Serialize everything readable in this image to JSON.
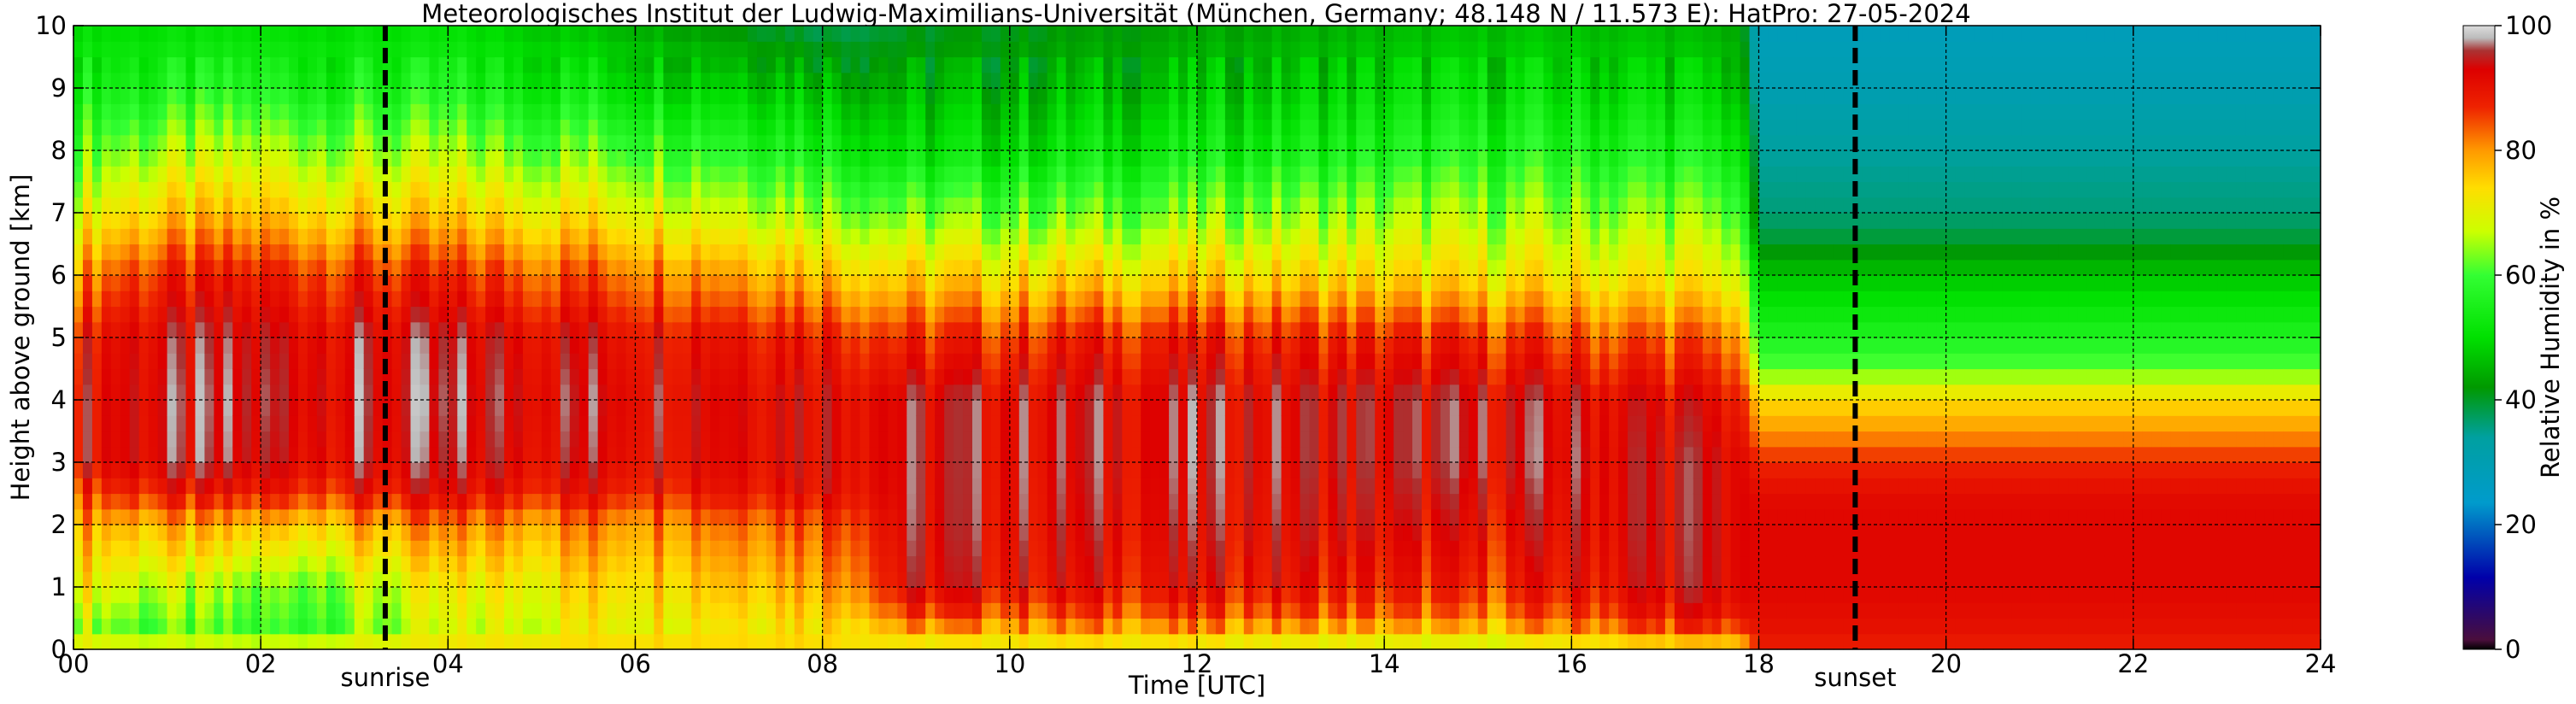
{
  "chart_data": {
    "type": "heatmap",
    "title": "Meteorologisches Institut der Ludwig-Maximilians-Universität (München, Germany; 48.148 N / 11.573 E):    HatPro: 27-05-2024",
    "xlabel": "Time [UTC]",
    "ylabel": "Height above ground [km]",
    "colorbar_label": "Relative Humidity in %",
    "xlim": [
      0,
      24
    ],
    "ylim": [
      0,
      10
    ],
    "x_ticks": [
      {
        "value": 0,
        "label": "00"
      },
      {
        "value": 2,
        "label": "02"
      },
      {
        "value": 4,
        "label": "04"
      },
      {
        "value": 6,
        "label": "06"
      },
      {
        "value": 8,
        "label": "08"
      },
      {
        "value": 10,
        "label": "10"
      },
      {
        "value": 12,
        "label": "12"
      },
      {
        "value": 14,
        "label": "14"
      },
      {
        "value": 16,
        "label": "16"
      },
      {
        "value": 18,
        "label": "18"
      },
      {
        "value": 20,
        "label": "20"
      },
      {
        "value": 22,
        "label": "22"
      },
      {
        "value": 24,
        "label": "24"
      }
    ],
    "y_ticks": [
      {
        "value": 0,
        "label": "0"
      },
      {
        "value": 1,
        "label": "1"
      },
      {
        "value": 2,
        "label": "2"
      },
      {
        "value": 3,
        "label": "3"
      },
      {
        "value": 4,
        "label": "4"
      },
      {
        "value": 5,
        "label": "5"
      },
      {
        "value": 6,
        "label": "6"
      },
      {
        "value": 7,
        "label": "7"
      },
      {
        "value": 8,
        "label": "8"
      },
      {
        "value": 9,
        "label": "9"
      },
      {
        "value": 10,
        "label": "10"
      }
    ],
    "colorbar_range": [
      0,
      100
    ],
    "colorbar_ticks": [
      {
        "value": 0,
        "label": "0"
      },
      {
        "value": 20,
        "label": "20"
      },
      {
        "value": 40,
        "label": "40"
      },
      {
        "value": 60,
        "label": "60"
      },
      {
        "value": 80,
        "label": "80"
      },
      {
        "value": 100,
        "label": "100"
      }
    ],
    "colorbar_stops": [
      {
        "value": 0,
        "color": "#000000"
      },
      {
        "value": 1.5,
        "color": "#4a0e3c"
      },
      {
        "value": 11.5,
        "color": "#0000aa"
      },
      {
        "value": 23.5,
        "color": "#009bcc"
      },
      {
        "value": 34,
        "color": "#00a0a0"
      },
      {
        "value": 42,
        "color": "#009900"
      },
      {
        "value": 50,
        "color": "#00e000"
      },
      {
        "value": 60,
        "color": "#33ff33"
      },
      {
        "value": 67,
        "color": "#ccff00"
      },
      {
        "value": 74,
        "color": "#ffdd00"
      },
      {
        "value": 80,
        "color": "#ff9900"
      },
      {
        "value": 87,
        "color": "#ee2200"
      },
      {
        "value": 93,
        "color": "#dd0000"
      },
      {
        "value": 96,
        "color": "#aa3333"
      },
      {
        "value": 98,
        "color": "#bbbbbb"
      },
      {
        "value": 100,
        "color": "#dddddd"
      }
    ],
    "markers": [
      {
        "x": 3.33,
        "label": "sunrise"
      },
      {
        "x": 19.03,
        "label": "sunset"
      }
    ],
    "grid": true,
    "rh_profile_keyframes": [
      {
        "time": 0.0,
        "heights": [
          0,
          0.2,
          1,
          2,
          2.5,
          3,
          4,
          5,
          6,
          7,
          8,
          9,
          10
        ],
        "rh": [
          78,
          66,
          74,
          80,
          86,
          92,
          92,
          90,
          80,
          70,
          62,
          55,
          50
        ]
      },
      {
        "time": 0.6,
        "heights": [
          0,
          0.2,
          1,
          2,
          2.5,
          3,
          4,
          5,
          6,
          7,
          8,
          9,
          10
        ],
        "rh": [
          80,
          60,
          68,
          78,
          88,
          93,
          93,
          92,
          86,
          74,
          64,
          55,
          50
        ]
      },
      {
        "time": 2.0,
        "heights": [
          0,
          0.2,
          1,
          2,
          2.5,
          3,
          4,
          5,
          6,
          7,
          8,
          9,
          10
        ],
        "rh": [
          80,
          58,
          62,
          76,
          88,
          93,
          94,
          93,
          88,
          76,
          66,
          56,
          50
        ]
      },
      {
        "time": 4.0,
        "heights": [
          0,
          0.2,
          1,
          2,
          2.5,
          3,
          4,
          5,
          6,
          7,
          8,
          9,
          10
        ],
        "rh": [
          80,
          66,
          70,
          80,
          90,
          93,
          94,
          93,
          86,
          74,
          64,
          55,
          50
        ]
      },
      {
        "time": 6.0,
        "heights": [
          0,
          0.2,
          1,
          2,
          2.5,
          3,
          4,
          5,
          6,
          7,
          8,
          9,
          10
        ],
        "rh": [
          78,
          72,
          76,
          82,
          90,
          93,
          94,
          92,
          84,
          72,
          62,
          52,
          45
        ]
      },
      {
        "time": 8.0,
        "heights": [
          0,
          0.2,
          1,
          2,
          2.5,
          3,
          4,
          5,
          6,
          7,
          8,
          9,
          10
        ],
        "rh": [
          76,
          74,
          80,
          86,
          92,
          93,
          93,
          90,
          78,
          66,
          56,
          48,
          38
        ]
      },
      {
        "time": 9.0,
        "heights": [
          0,
          0.2,
          0.5,
          1,
          2,
          3,
          4,
          5,
          6,
          7,
          8,
          9,
          10
        ],
        "rh": [
          70,
          74,
          84,
          92,
          93,
          93,
          93,
          86,
          74,
          62,
          50,
          44,
          40
        ]
      },
      {
        "time": 11.0,
        "heights": [
          0,
          0.2,
          0.5,
          1,
          2,
          3,
          4,
          5,
          6,
          7,
          8,
          9,
          10
        ],
        "rh": [
          70,
          76,
          84,
          90,
          92,
          93,
          93,
          88,
          74,
          62,
          52,
          46,
          42
        ]
      },
      {
        "time": 13.0,
        "heights": [
          0,
          0.2,
          0.5,
          1,
          2,
          3,
          4,
          5,
          6,
          7,
          8,
          9,
          10
        ],
        "rh": [
          68,
          74,
          84,
          90,
          92,
          93,
          93,
          88,
          74,
          64,
          54,
          48,
          44
        ]
      },
      {
        "time": 15.0,
        "heights": [
          0,
          0.2,
          0.5,
          1,
          2,
          3,
          4,
          5,
          6,
          7,
          8,
          9,
          10
        ],
        "rh": [
          66,
          72,
          80,
          86,
          90,
          93,
          93,
          86,
          72,
          64,
          56,
          50,
          46
        ]
      },
      {
        "time": 16.7,
        "heights": [
          0,
          0.2,
          0.5,
          1,
          2,
          3,
          4,
          5,
          6,
          7,
          8,
          9,
          10
        ],
        "rh": [
          68,
          80,
          88,
          92,
          93,
          93,
          92,
          84,
          72,
          64,
          56,
          50,
          46
        ]
      },
      {
        "time": 17.8,
        "heights": [
          0,
          0.2,
          0.5,
          1,
          2,
          3,
          4,
          5,
          6,
          7,
          8,
          9,
          10
        ],
        "rh": [
          70,
          82,
          90,
          93,
          93,
          93,
          90,
          82,
          70,
          62,
          54,
          48,
          44
        ]
      },
      {
        "time": 18.0,
        "heights": [
          0,
          0.3,
          1,
          2,
          2.5,
          3,
          3.5,
          4,
          4.5,
          5,
          6,
          6.5,
          7,
          8,
          9,
          10
        ],
        "rh": [
          88,
          90,
          92,
          92,
          91,
          87,
          80,
          74,
          62,
          56,
          47,
          40,
          36,
          34,
          30,
          28
        ]
      },
      {
        "time": 24.0,
        "heights": [
          0,
          0.3,
          1,
          2,
          2.5,
          3,
          3.5,
          4,
          4.5,
          5,
          6,
          6.5,
          7,
          8,
          9,
          10
        ],
        "rh": [
          88,
          90,
          92,
          92,
          91,
          87,
          80,
          74,
          62,
          56,
          47,
          40,
          36,
          34,
          30,
          28
        ]
      }
    ]
  }
}
